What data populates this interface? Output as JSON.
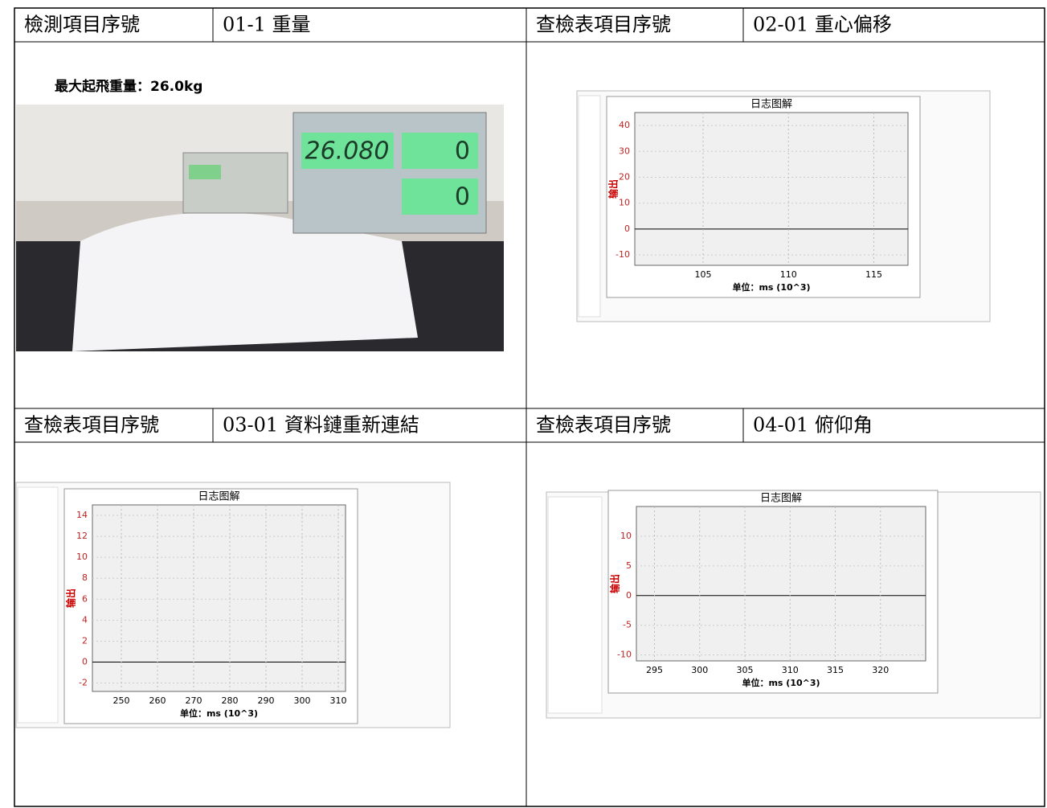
{
  "sections": [
    {
      "label": "檢測項目序號",
      "value": "01-1 重量",
      "caption": "最大起飛重量：26.0kg",
      "photo": {
        "reading": "26.080",
        "tare": "0",
        "count": "0"
      }
    },
    {
      "label": "查檢表項目序號",
      "value": "02-01 重心偏移",
      "screen": {
        "title": "日志图解",
        "ylabel": "输出",
        "xlabel": "单位：ms (10^3)",
        "ylim": [
          -14,
          45
        ],
        "yticks": [
          -10,
          0,
          10,
          20,
          30,
          40
        ],
        "xlim": [
          101,
          117
        ],
        "xticks": [
          105,
          110,
          115
        ]
      }
    },
    {
      "label": "查檢表項目序號",
      "value": "03-01 資料鏈重新連結",
      "screen": {
        "title": "日志图解",
        "ylabel": "输出",
        "xlabel": "单位：ms (10^3)",
        "ylim": [
          -2.8,
          15
        ],
        "yticks": [
          -2,
          0,
          2,
          4,
          6,
          8,
          10,
          12,
          14
        ],
        "xlim": [
          242,
          312
        ],
        "xticks": [
          250,
          260,
          270,
          280,
          290,
          300,
          310
        ]
      }
    },
    {
      "label": "查檢表項目序號",
      "value": "04-01 俯仰角",
      "screen": {
        "title": "日志图解",
        "ylabel": "输出",
        "xlabel": "单位：ms (10^3)",
        "ylim": [
          -11,
          15
        ],
        "yticks": [
          -10,
          -5,
          0,
          5,
          10
        ],
        "xlim": [
          293,
          325
        ],
        "xticks": [
          295,
          300,
          305,
          310,
          315,
          320
        ]
      }
    }
  ]
}
